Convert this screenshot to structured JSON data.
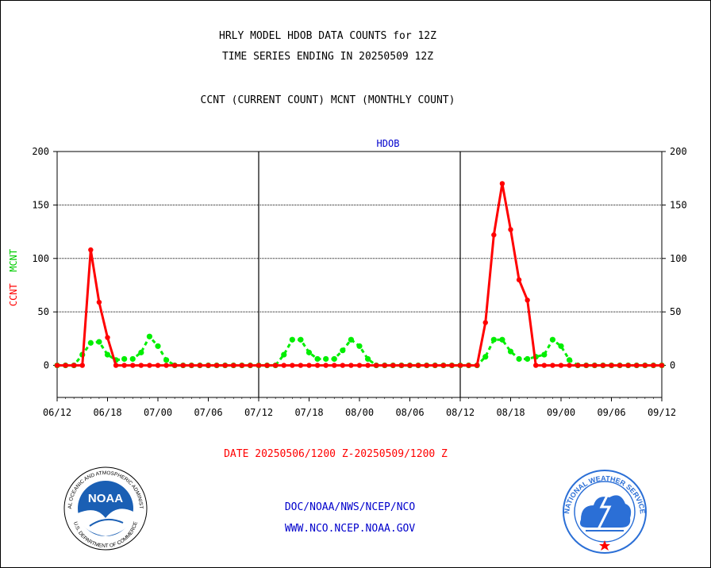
{
  "header": {
    "title": "HRLY MODEL HDOB DATA COUNTS for 12Z",
    "subtitle": "TIME SERIES ENDING IN 20250509 12Z",
    "legend_text": "CCNT (CURRENT COUNT) MCNT (MONTHLY COUNT)"
  },
  "y_axis_label": {
    "ccnt": "CCNT",
    "mcnt": "MCNT"
  },
  "footer": {
    "date_range": "DATE 20250506/1200 Z-20250509/1200 Z",
    "org_path": "DOC/NOAA/NWS/NCEP/NCO",
    "website": "WWW.NCO.NCEP.NOAA.GOV"
  },
  "logos": {
    "noaa": {
      "center_text": "NOAA",
      "ring_text": "NATIONAL OCEANIC AND ATMOSPHERIC ADMINISTRATION",
      "bottom_text": "U.S. DEPARTMENT OF COMMERCE"
    },
    "nws": {
      "ring_text": "NATIONAL WEATHER SERVICE"
    }
  },
  "colors": {
    "ccnt": "#ff0000",
    "mcnt": "#00ee00",
    "label_blue": "#0000cc",
    "noaa_blue": "#1a5fb4",
    "nws_blue": "#2b6fd6"
  },
  "chart_data": {
    "type": "line",
    "panel_title": "HDOB",
    "ylim": [
      -30,
      200
    ],
    "yticks": [
      0,
      50,
      100,
      150,
      200
    ],
    "x_tick_labels": [
      "06/12",
      "06/18",
      "07/00",
      "07/06",
      "07/12",
      "07/18",
      "08/00",
      "08/06",
      "08/12",
      "08/18",
      "09/00",
      "09/06",
      "09/12"
    ],
    "x_tick_hours": [
      0,
      6,
      12,
      18,
      24,
      30,
      36,
      42,
      48,
      54,
      60,
      66,
      72
    ],
    "day_separators_hours": [
      24,
      48
    ],
    "grid": "horizontal dotted at 50, 100, 150",
    "hours": [
      0,
      1,
      2,
      3,
      4,
      5,
      6,
      7,
      8,
      9,
      10,
      11,
      12,
      13,
      14,
      15,
      16,
      17,
      18,
      19,
      20,
      21,
      22,
      23,
      24,
      25,
      26,
      27,
      28,
      29,
      30,
      31,
      32,
      33,
      34,
      35,
      36,
      37,
      38,
      39,
      40,
      41,
      42,
      43,
      44,
      45,
      46,
      47,
      48,
      49,
      50,
      51,
      52,
      53,
      54,
      55,
      56,
      57,
      58,
      59,
      60,
      61,
      62,
      63,
      64,
      65,
      66,
      67,
      68,
      69,
      70,
      71,
      72
    ],
    "series": [
      {
        "name": "CCNT",
        "values": [
          0,
          0,
          0,
          0,
          108,
          59,
          26,
          0,
          0,
          0,
          0,
          0,
          0,
          0,
          0,
          0,
          0,
          0,
          0,
          0,
          0,
          0,
          0,
          0,
          0,
          0,
          0,
          0,
          0,
          0,
          0,
          0,
          0,
          0,
          0,
          0,
          0,
          0,
          0,
          0,
          0,
          0,
          0,
          0,
          0,
          0,
          0,
          0,
          0,
          0,
          0,
          40,
          122,
          170,
          127,
          80,
          61,
          0,
          0,
          0,
          0,
          0,
          0,
          0,
          0,
          0,
          0,
          0,
          0,
          0,
          0,
          0,
          0
        ]
      },
      {
        "name": "MCNT",
        "values": [
          0,
          0,
          0,
          10,
          21,
          22,
          10,
          5,
          6,
          6,
          12,
          27,
          18,
          5,
          0,
          0,
          0,
          0,
          0,
          0,
          0,
          0,
          0,
          0,
          0,
          0,
          0,
          10,
          24,
          24,
          12,
          6,
          6,
          6,
          14,
          24,
          18,
          6,
          0,
          0,
          0,
          0,
          0,
          0,
          0,
          0,
          0,
          0,
          0,
          0,
          0,
          8,
          24,
          24,
          13,
          6,
          6,
          8,
          10,
          24,
          18,
          5,
          0,
          0,
          0,
          0,
          0,
          0,
          0,
          0,
          0,
          0,
          0
        ]
      }
    ]
  }
}
